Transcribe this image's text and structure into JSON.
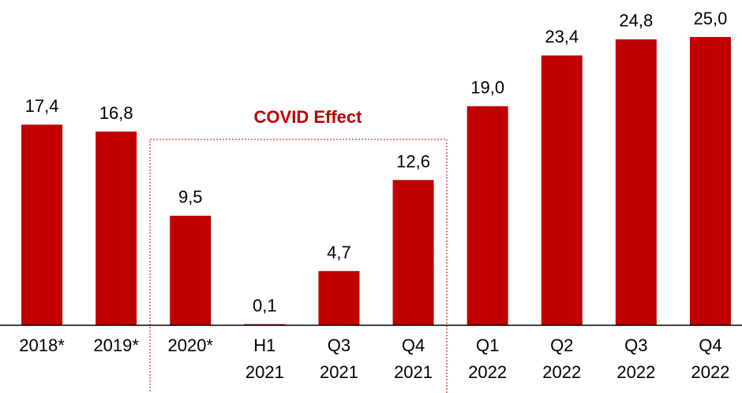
{
  "chart_data": {
    "type": "bar",
    "categories": [
      "2018*",
      "2019*",
      "2020*",
      "H1 2021",
      "Q3 2021",
      "Q4 2021",
      "Q1 2022",
      "Q2 2022",
      "Q3 2022",
      "Q4 2022"
    ],
    "values": [
      17.4,
      16.8,
      9.5,
      0.1,
      4.7,
      12.6,
      19.0,
      23.4,
      24.8,
      25.0
    ],
    "value_labels": [
      "17,4",
      "16,8",
      "9,5",
      "0,1",
      "4,7",
      "12,6",
      "19,0",
      "23,4",
      "24,8",
      "25,0"
    ],
    "color": "#c00000",
    "ylim": [
      0,
      25
    ],
    "annotation": "COVID Effect"
  }
}
